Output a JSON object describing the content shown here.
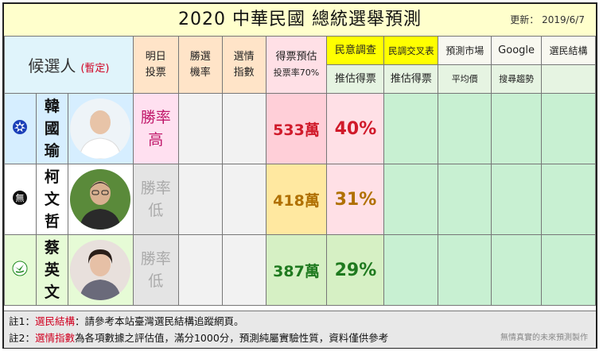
{
  "header": {
    "title": "2020  中華民國 總統選舉預測",
    "updated_label": "更新：",
    "updated_date": "2019/6/7"
  },
  "columns": {
    "candidate": "候選人",
    "candidate_note": "(暫定)",
    "tomorrow_vote": [
      "明日",
      "投票"
    ],
    "win_rate": [
      "勝選",
      "機率"
    ],
    "index": [
      "選情",
      "指數"
    ],
    "vote_estimate": [
      "得票預估",
      "投票率70%"
    ],
    "poll": [
      "民意調查",
      "推估得票"
    ],
    "cross_poll": [
      "民調交叉表",
      "推估得票"
    ],
    "market": [
      "預測市場",
      "平均價"
    ],
    "google": [
      "Google",
      "搜尋趨勢"
    ],
    "structure": [
      "選民結構",
      ""
    ]
  },
  "candidates": [
    {
      "name": [
        "韓",
        "國",
        "瑜"
      ],
      "party": "kmt",
      "tomorrow": [
        "勝率",
        "高"
      ],
      "votes": "533萬",
      "poll_pct": "40%"
    },
    {
      "name": [
        "柯",
        "文",
        "哲"
      ],
      "party": "none",
      "tomorrow": [
        "勝率",
        "低"
      ],
      "votes": "418萬",
      "poll_pct": "31%"
    },
    {
      "name": [
        "蔡",
        "英",
        "文"
      ],
      "party": "dpp",
      "tomorrow": [
        "勝率",
        "低"
      ],
      "votes": "387萬",
      "poll_pct": "29%"
    }
  ],
  "notes": {
    "n1_prefix": "註1：",
    "n1_key": "選民結構",
    "n1_text": "：請參考本站臺灣選民結構追蹤網頁。",
    "n2_prefix": "註2：",
    "n2_key": "選情指數",
    "n2_text": "為各項數據之評估值，滿分1000分，預測純屬實驗性質，資料僅供參考",
    "credit": "無情真實的未來預測製作"
  },
  "colors": {
    "kmt_blue": "#1a3fb8",
    "dpp_green": "#1f8a1f",
    "accent_red": "#d00020"
  }
}
